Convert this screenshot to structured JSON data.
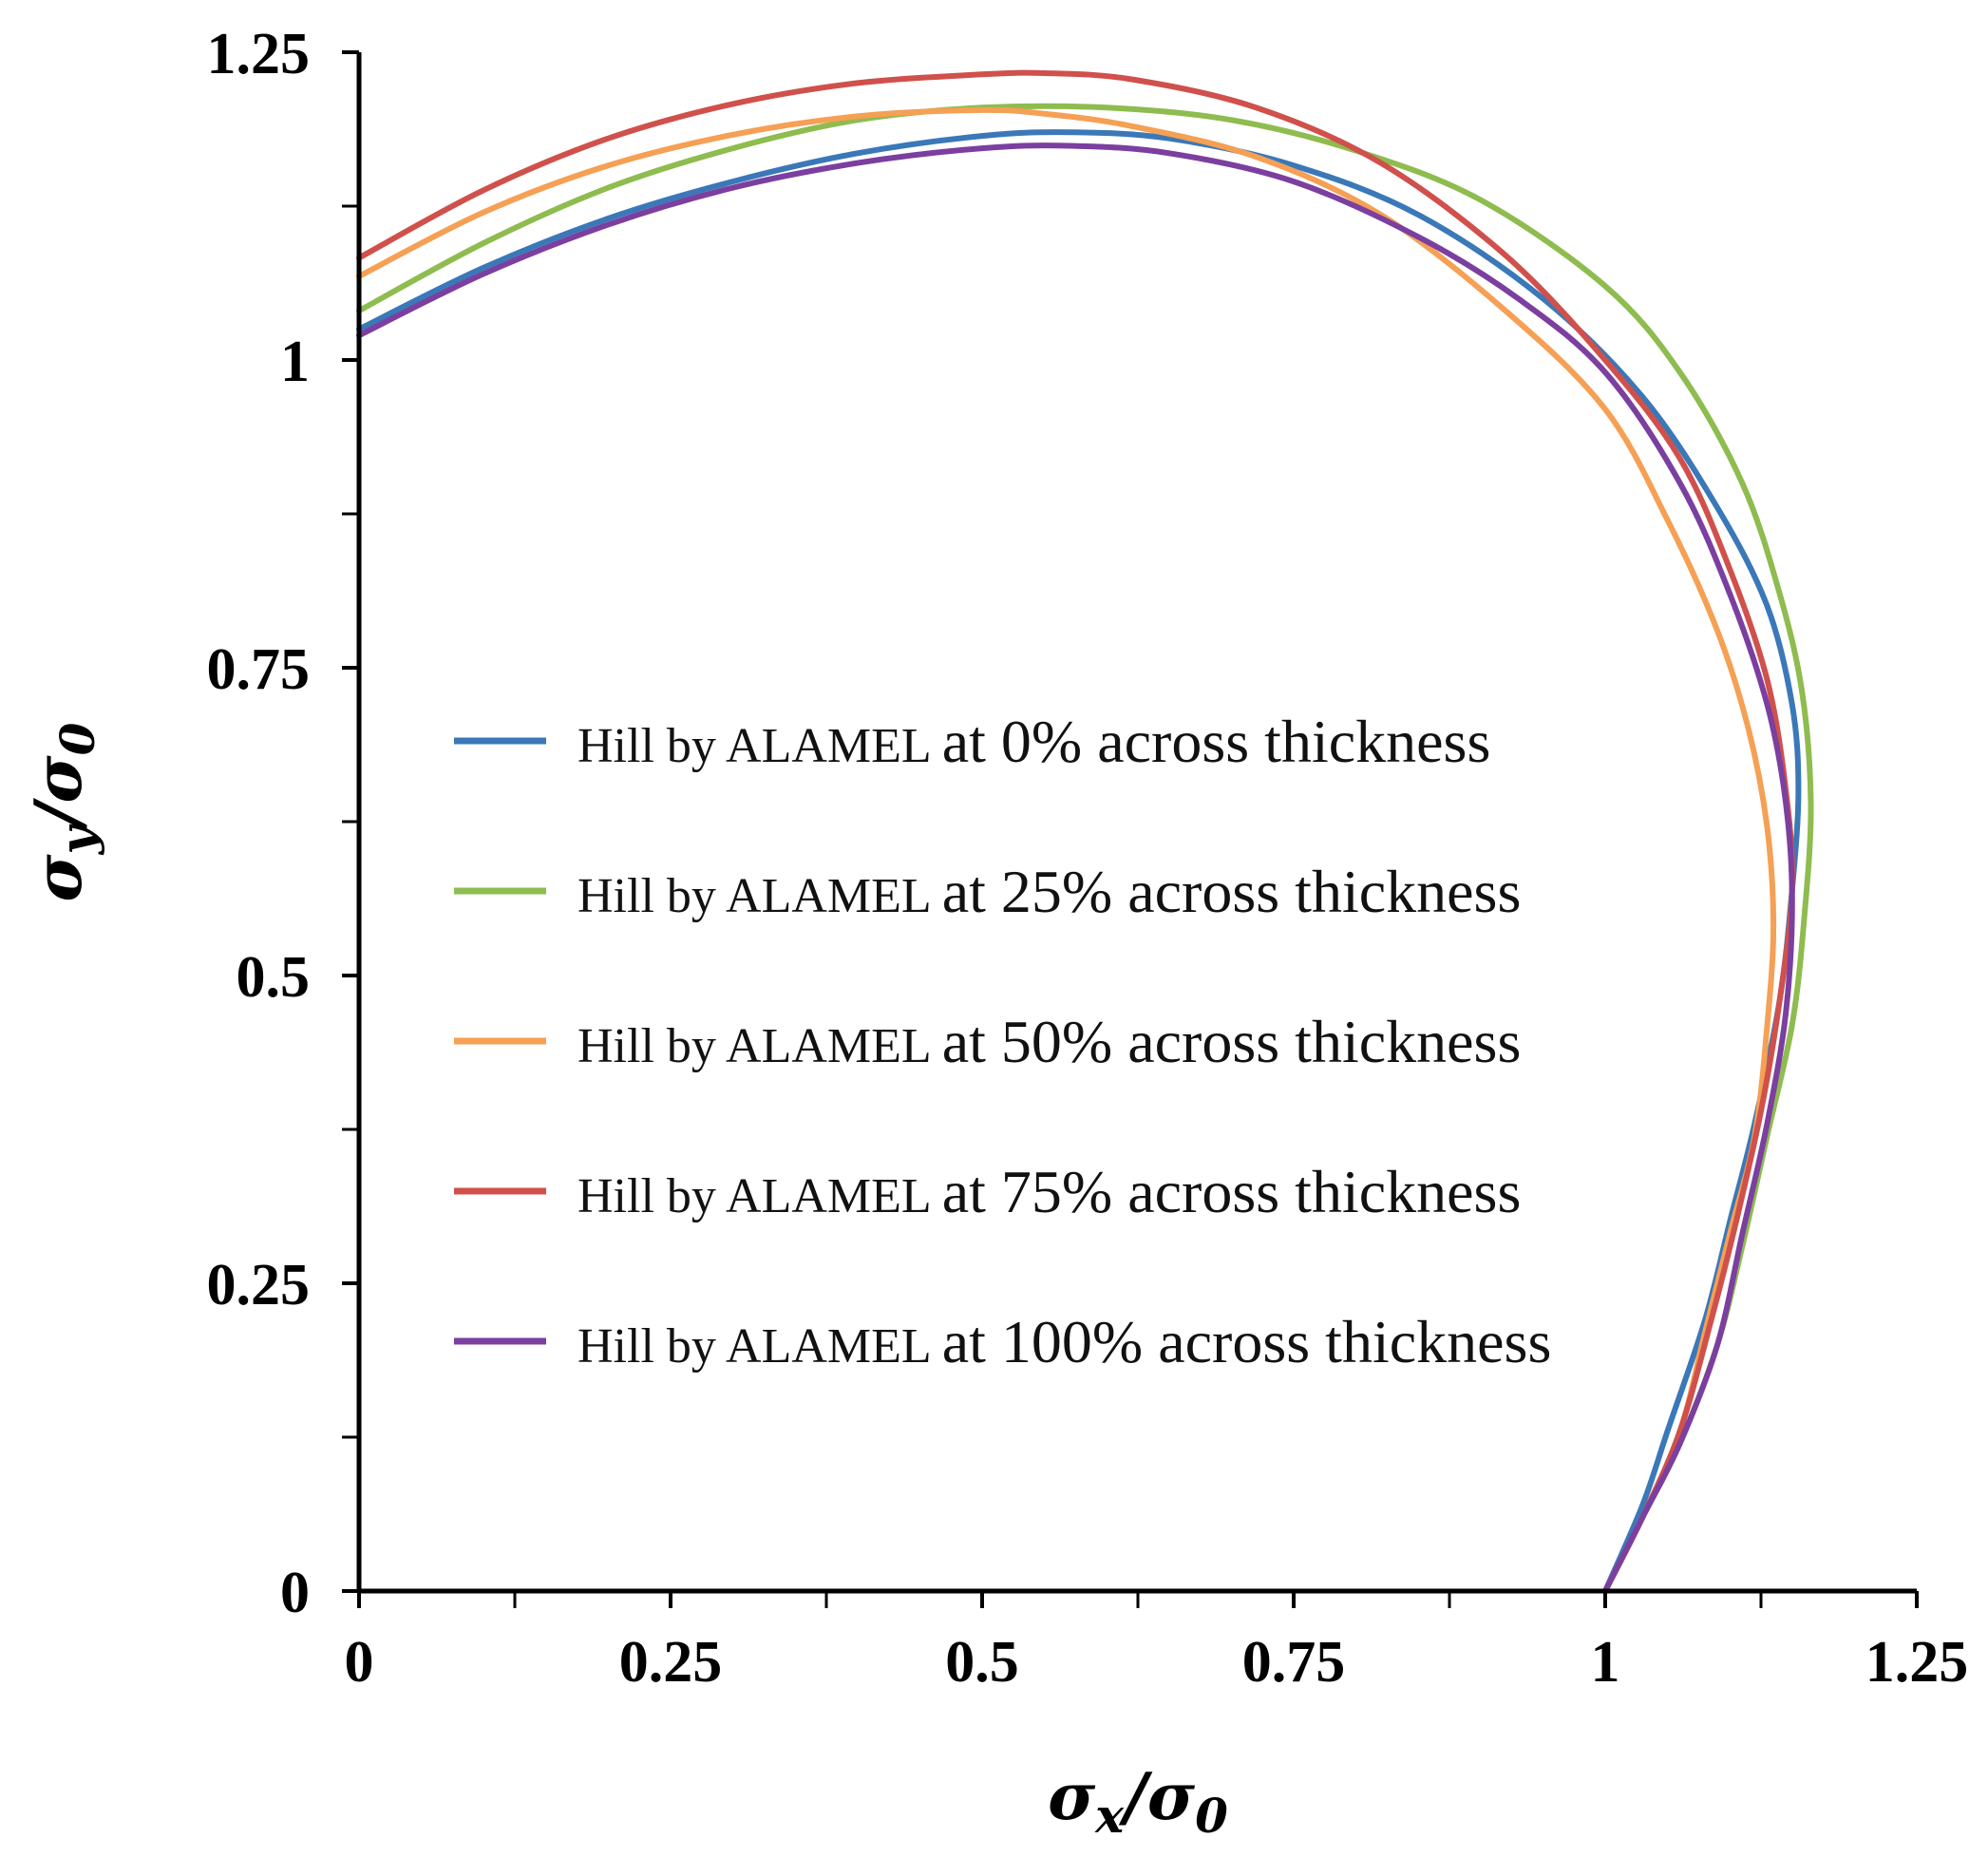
{
  "chart_data": {
    "type": "line",
    "title": "",
    "xlabel": "σx/σ0",
    "ylabel": "σy/σ0",
    "xlim": [
      0,
      1.25
    ],
    "ylim": [
      0,
      1.25
    ],
    "x_tick_labels": [
      "0",
      "0.25",
      "0.5",
      "0.75",
      "1",
      "1.25"
    ],
    "y_tick_labels": [
      "0",
      "0.25",
      "0.5",
      "0.75",
      "1",
      "1.25"
    ],
    "x_tick_values": [
      0,
      0.25,
      0.5,
      0.75,
      1,
      1.25
    ],
    "y_tick_values": [
      0,
      0.25,
      0.5,
      0.75,
      1,
      1.25
    ],
    "minor_tick_step": 0.125,
    "legend_position": "center",
    "grid": false,
    "series": [
      {
        "name": "Hill by ALAMEL at 0% across thickness",
        "label_model": "Hill by ALAMEL",
        "label_rest": "at 0% across thickness",
        "color": "#3a78b8",
        "x": [
          0,
          0.1,
          0.2,
          0.3,
          0.4,
          0.5,
          0.57,
          0.65,
          0.75,
          0.85,
          0.95,
          1.03,
          1.09,
          1.13,
          1.15,
          1.155,
          1.15,
          1.14,
          1.12,
          1.1,
          1.08,
          1.05,
          1.03,
          1.0
        ],
        "y": [
          1.025,
          1.075,
          1.115,
          1.145,
          1.168,
          1.182,
          1.185,
          1.18,
          1.158,
          1.118,
          1.05,
          0.97,
          0.88,
          0.8,
          0.72,
          0.65,
          0.57,
          0.48,
          0.38,
          0.3,
          0.22,
          0.13,
          0.07,
          0.0
        ]
      },
      {
        "name": "Hill by ALAMEL at 25% across thickness",
        "label_model": "Hill by ALAMEL",
        "label_rest": "at 25% across thickness",
        "color": "#8ebc4f",
        "x": [
          0,
          0.1,
          0.2,
          0.3,
          0.4,
          0.5,
          0.6,
          0.7,
          0.8,
          0.9,
          1.0,
          1.06,
          1.11,
          1.14,
          1.158,
          1.165,
          1.16,
          1.15,
          1.13,
          1.11,
          1.09,
          1.06,
          1.03,
          1.0
        ],
        "y": [
          1.04,
          1.095,
          1.14,
          1.172,
          1.195,
          1.205,
          1.205,
          1.195,
          1.17,
          1.13,
          1.06,
          0.99,
          0.9,
          0.81,
          0.73,
          0.64,
          0.55,
          0.46,
          0.37,
          0.28,
          0.2,
          0.12,
          0.06,
          0.0
        ]
      },
      {
        "name": "Hill by ALAMEL at 50% across thickness",
        "label_model": "Hill by ALAMEL",
        "label_rest": "at 50% across thickness",
        "color": "#f5a054",
        "x": [
          0,
          0.1,
          0.2,
          0.3,
          0.4,
          0.5,
          0.55,
          0.62,
          0.72,
          0.82,
          0.92,
          1.0,
          1.05,
          1.09,
          1.115,
          1.13,
          1.135,
          1.13,
          1.12,
          1.1,
          1.08,
          1.06,
          1.03,
          1.0
        ],
        "y": [
          1.068,
          1.12,
          1.158,
          1.183,
          1.198,
          1.203,
          1.2,
          1.19,
          1.165,
          1.118,
          1.04,
          0.96,
          0.87,
          0.78,
          0.7,
          0.62,
          0.54,
          0.46,
          0.37,
          0.29,
          0.21,
          0.13,
          0.06,
          0.0
        ]
      },
      {
        "name": "Hill by ALAMEL at 75% across thickness",
        "label_model": "Hill by ALAMEL",
        "label_rest": "at 75% across thickness",
        "color": "#d0504b",
        "x": [
          0,
          0.1,
          0.2,
          0.3,
          0.4,
          0.5,
          0.55,
          0.62,
          0.72,
          0.82,
          0.92,
          1.0,
          1.06,
          1.1,
          1.13,
          1.145,
          1.15,
          1.14,
          1.125,
          1.105,
          1.085,
          1.06,
          1.03,
          1.0
        ],
        "y": [
          1.083,
          1.138,
          1.18,
          1.208,
          1.225,
          1.232,
          1.233,
          1.228,
          1.205,
          1.16,
          1.085,
          1.0,
          0.92,
          0.83,
          0.74,
          0.65,
          0.57,
          0.48,
          0.39,
          0.3,
          0.22,
          0.13,
          0.06,
          0.0
        ]
      },
      {
        "name": "Hill by ALAMEL at 100% across thickness",
        "label_model": "Hill by ALAMEL",
        "label_rest": "at 100% across thickness",
        "color": "#7b3fa0",
        "x": [
          0,
          0.1,
          0.2,
          0.3,
          0.4,
          0.5,
          0.57,
          0.65,
          0.75,
          0.85,
          0.93,
          1.0,
          1.06,
          1.1,
          1.13,
          1.145,
          1.15,
          1.145,
          1.13,
          1.11,
          1.09,
          1.06,
          1.03,
          1.0
        ],
        "y": [
          1.02,
          1.07,
          1.11,
          1.14,
          1.16,
          1.172,
          1.174,
          1.168,
          1.145,
          1.1,
          1.05,
          0.99,
          0.9,
          0.81,
          0.72,
          0.64,
          0.56,
          0.47,
          0.38,
          0.29,
          0.2,
          0.12,
          0.06,
          0.0
        ]
      }
    ]
  }
}
